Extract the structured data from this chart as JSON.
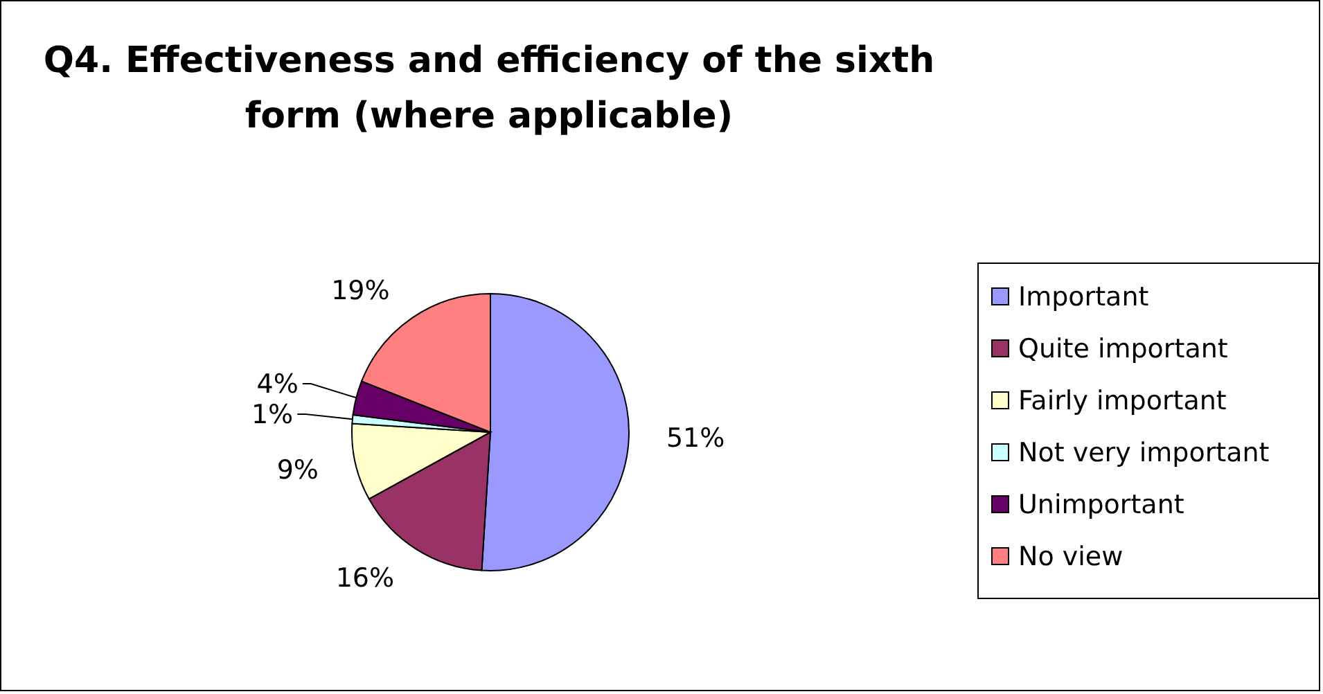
{
  "chart_data": {
    "type": "pie",
    "title": "Q4. Effectiveness and efficiency of the sixth form (where applicable)",
    "categories": [
      "Important",
      "Quite important",
      "Fairly important",
      "Not very important",
      "Unimportant",
      "No view"
    ],
    "values": [
      51,
      16,
      9,
      1,
      4,
      19
    ],
    "value_labels": [
      "51%",
      "16%",
      "9%",
      "1%",
      "4%",
      "19%"
    ],
    "colors": [
      "#9999ff",
      "#993366",
      "#ffffcc",
      "#ccffff",
      "#660066",
      "#ff8080"
    ],
    "legend": "right"
  }
}
